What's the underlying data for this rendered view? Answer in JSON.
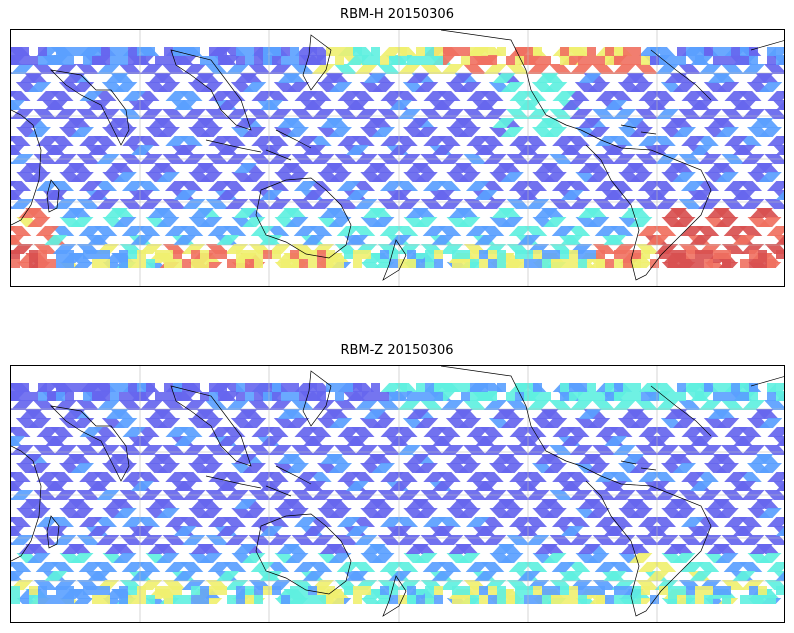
{
  "panels": [
    {
      "title": "RBM-H 20150306",
      "colormap": "jet",
      "pattern": "rbm-h"
    },
    {
      "title": "RBM-Z 20150306",
      "colormap": "jet",
      "pattern": "rbm-z"
    }
  ],
  "colors": {
    "low": "#6666ee",
    "low_mid": "#5aa0ff",
    "mid": "#5ff0e0",
    "mid_high": "#f0f070",
    "high": "#f07060",
    "very_high": "#d85050",
    "coastline": "#000000",
    "gridline": "#bbbbbb"
  }
}
